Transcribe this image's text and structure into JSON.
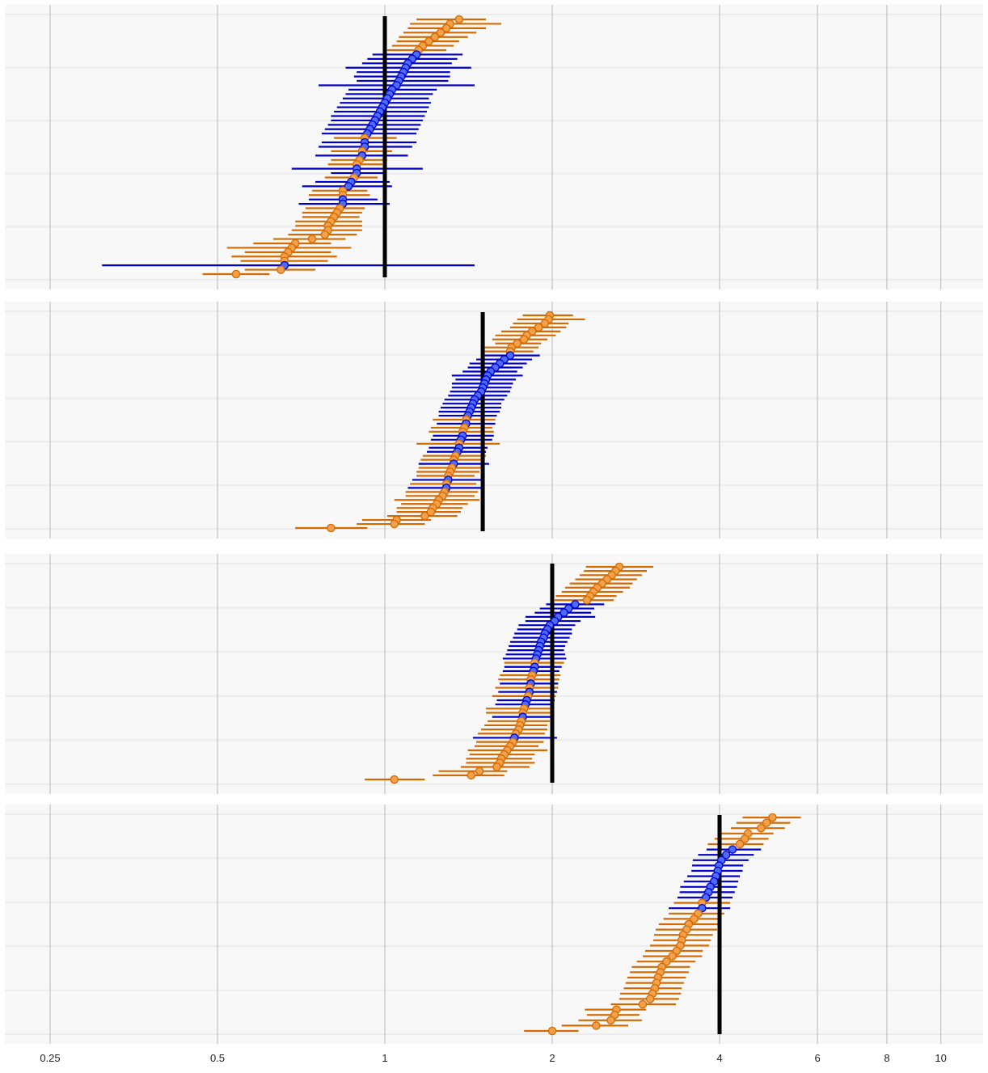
{
  "colors": {
    "panel_bg": "#f8f8f8",
    "grid_major": "#bdbdbd",
    "grid_minor": "#ececec",
    "reference_line": "#000000",
    "orange_series": "#d46a00",
    "orange_fill": "#f2a04a",
    "blue_series": "#0000c8",
    "blue_fill": "#4d6cff"
  },
  "chart_data": {
    "type": "scatter",
    "subtype": "forest plot (point estimates with horizontal interval bars), 4 stacked panels",
    "x_scale": "log",
    "x_range": [
      0.22,
      12.5
    ],
    "x_ticks": [
      0.25,
      0.5,
      1,
      2,
      4,
      6,
      8,
      10
    ],
    "x_tick_labels": [
      "0.25",
      "0.5",
      "1",
      "2",
      "4",
      "6",
      "8",
      "10"
    ],
    "title": "",
    "xlabel": "",
    "ylabel": "",
    "legend": "none",
    "grid": true,
    "panels": [
      {
        "reference_value": 1,
        "orange_intervals": [
          [
            1.36,
            1.14,
            1.52
          ],
          [
            1.31,
            1.11,
            1.62
          ],
          [
            1.29,
            1.1,
            1.52
          ],
          [
            1.26,
            1.08,
            1.46
          ],
          [
            1.23,
            1.06,
            1.41
          ],
          [
            1.2,
            1.05,
            1.36
          ],
          [
            1.17,
            1.03,
            1.33
          ],
          [
            1.15,
            1.01,
            1.29
          ],
          [
            0.92,
            0.81,
            1.05
          ],
          [
            0.91,
            0.8,
            1.03
          ],
          [
            0.9,
            0.8,
            1.01
          ],
          [
            0.89,
            0.79,
            0.99
          ],
          [
            0.88,
            0.78,
            0.97
          ],
          [
            0.84,
            0.74,
            0.93
          ],
          [
            0.84,
            0.73,
            0.94
          ],
          [
            0.83,
            0.72,
            0.92
          ],
          [
            0.82,
            0.71,
            0.91
          ],
          [
            0.81,
            0.71,
            0.9
          ],
          [
            0.8,
            0.69,
            0.91
          ],
          [
            0.79,
            0.69,
            0.91
          ],
          [
            0.79,
            0.68,
            0.91
          ],
          [
            0.78,
            0.67,
            0.89
          ],
          [
            0.74,
            0.63,
            0.85
          ],
          [
            0.69,
            0.58,
            0.8
          ],
          [
            0.68,
            0.52,
            0.87
          ],
          [
            0.67,
            0.56,
            0.8
          ],
          [
            0.66,
            0.53,
            0.82
          ],
          [
            0.66,
            0.55,
            0.79
          ],
          [
            0.65,
            0.56,
            0.75
          ],
          [
            0.54,
            0.47,
            0.62
          ]
        ],
        "blue_intervals": [
          [
            1.14,
            0.95,
            1.38
          ],
          [
            1.12,
            0.93,
            1.35
          ],
          [
            1.1,
            0.91,
            1.32
          ],
          [
            1.09,
            0.85,
            1.43
          ],
          [
            1.08,
            0.89,
            1.31
          ],
          [
            1.07,
            0.88,
            1.31
          ],
          [
            1.06,
            0.89,
            1.3
          ],
          [
            1.05,
            0.76,
            1.45
          ],
          [
            1.03,
            0.86,
            1.24
          ],
          [
            1.02,
            0.85,
            1.22
          ],
          [
            1.01,
            0.84,
            1.2
          ],
          [
            1.0,
            0.83,
            1.21
          ],
          [
            0.99,
            0.82,
            1.2
          ],
          [
            0.98,
            0.81,
            1.19
          ],
          [
            0.97,
            0.8,
            1.18
          ],
          [
            0.96,
            0.8,
            1.17
          ],
          [
            0.95,
            0.79,
            1.16
          ],
          [
            0.94,
            0.78,
            1.15
          ],
          [
            0.93,
            0.77,
            1.14
          ],
          [
            0.92,
            0.77,
            1.14
          ],
          [
            0.92,
            0.76,
            1.12
          ],
          [
            0.91,
            0.75,
            1.1
          ],
          [
            0.89,
            0.68,
            1.17
          ],
          [
            0.89,
            0.8,
            1.0
          ],
          [
            0.87,
            0.75,
            1.02
          ],
          [
            0.86,
            0.71,
            1.03
          ],
          [
            0.84,
            0.73,
            0.97
          ],
          [
            0.84,
            0.7,
            1.02
          ],
          [
            0.66,
            0.31,
            1.45
          ]
        ]
      },
      {
        "reference_value": 1.5,
        "orange_intervals": [
          [
            1.98,
            1.77,
            2.18
          ],
          [
            1.97,
            1.73,
            2.29
          ],
          [
            1.94,
            1.7,
            2.14
          ],
          [
            1.89,
            1.68,
            2.12
          ],
          [
            1.84,
            1.62,
            2.07
          ],
          [
            1.8,
            1.58,
            2.03
          ],
          [
            1.78,
            1.56,
            1.96
          ],
          [
            1.73,
            1.58,
            1.91
          ],
          [
            1.69,
            1.51,
            1.89
          ],
          [
            1.68,
            1.5,
            1.85
          ],
          [
            1.4,
            1.22,
            1.58
          ],
          [
            1.39,
            1.21,
            1.56
          ],
          [
            1.38,
            1.2,
            1.57
          ],
          [
            1.36,
            1.14,
            1.61
          ],
          [
            1.34,
            1.17,
            1.52
          ],
          [
            1.33,
            1.16,
            1.51
          ],
          [
            1.32,
            1.15,
            1.49
          ],
          [
            1.31,
            1.14,
            1.48
          ],
          [
            1.3,
            1.14,
            1.45
          ],
          [
            1.29,
            1.11,
            1.46
          ],
          [
            1.28,
            1.09,
            1.47
          ],
          [
            1.27,
            1.09,
            1.45
          ],
          [
            1.25,
            1.04,
            1.48
          ],
          [
            1.24,
            1.07,
            1.41
          ],
          [
            1.22,
            1.05,
            1.38
          ],
          [
            1.21,
            1.05,
            1.37
          ],
          [
            1.18,
            1.01,
            1.35
          ],
          [
            1.05,
            0.91,
            1.21
          ],
          [
            1.04,
            0.89,
            1.18
          ],
          [
            0.8,
            0.69,
            0.93
          ]
        ],
        "blue_intervals": [
          [
            1.68,
            1.49,
            1.9
          ],
          [
            1.64,
            1.46,
            1.84
          ],
          [
            1.61,
            1.42,
            1.8
          ],
          [
            1.58,
            1.41,
            1.77
          ],
          [
            1.55,
            1.38,
            1.73
          ],
          [
            1.53,
            1.32,
            1.77
          ],
          [
            1.52,
            1.34,
            1.72
          ],
          [
            1.51,
            1.32,
            1.7
          ],
          [
            1.5,
            1.32,
            1.69
          ],
          [
            1.49,
            1.31,
            1.68
          ],
          [
            1.47,
            1.3,
            1.66
          ],
          [
            1.45,
            1.28,
            1.64
          ],
          [
            1.44,
            1.27,
            1.62
          ],
          [
            1.43,
            1.26,
            1.62
          ],
          [
            1.42,
            1.25,
            1.61
          ],
          [
            1.41,
            1.25,
            1.59
          ],
          [
            1.4,
            1.24,
            1.58
          ],
          [
            1.38,
            1.22,
            1.57
          ],
          [
            1.37,
            1.21,
            1.56
          ],
          [
            1.36,
            1.2,
            1.53
          ],
          [
            1.35,
            1.19,
            1.52
          ],
          [
            1.33,
            1.15,
            1.54
          ],
          [
            1.3,
            1.12,
            1.5
          ],
          [
            1.29,
            1.1,
            1.51
          ]
        ]
      },
      {
        "reference_value": 2,
        "orange_intervals": [
          [
            2.64,
            2.3,
            3.04
          ],
          [
            2.6,
            2.28,
            2.96
          ],
          [
            2.56,
            2.24,
            2.9
          ],
          [
            2.51,
            2.2,
            2.84
          ],
          [
            2.46,
            2.15,
            2.79
          ],
          [
            2.41,
            2.11,
            2.76
          ],
          [
            2.37,
            2.08,
            2.68
          ],
          [
            2.34,
            2.03,
            2.61
          ],
          [
            2.31,
            2.02,
            2.58
          ],
          [
            1.86,
            1.64,
            2.1
          ],
          [
            1.84,
            1.61,
            2.07
          ],
          [
            1.83,
            1.6,
            2.06
          ],
          [
            1.82,
            1.58,
            2.05
          ],
          [
            1.81,
            1.56,
            2.03
          ],
          [
            1.78,
            1.52,
            2.0
          ],
          [
            1.77,
            1.52,
            1.99
          ],
          [
            1.76,
            1.53,
            1.98
          ],
          [
            1.75,
            1.51,
            1.96
          ],
          [
            1.74,
            1.49,
            1.96
          ],
          [
            1.72,
            1.47,
            1.94
          ],
          [
            1.7,
            1.46,
            1.93
          ],
          [
            1.68,
            1.45,
            1.89
          ],
          [
            1.66,
            1.41,
            1.96
          ],
          [
            1.64,
            1.42,
            1.86
          ],
          [
            1.62,
            1.4,
            1.84
          ],
          [
            1.61,
            1.4,
            1.86
          ],
          [
            1.59,
            1.37,
            1.82
          ],
          [
            1.48,
            1.25,
            1.66
          ],
          [
            1.43,
            1.22,
            1.64
          ],
          [
            1.04,
            0.92,
            1.18
          ]
        ],
        "blue_intervals": [
          [
            2.2,
            1.95,
            2.48
          ],
          [
            2.14,
            1.9,
            2.38
          ],
          [
            2.1,
            1.86,
            2.35
          ],
          [
            2.05,
            1.79,
            2.39
          ],
          [
            2.02,
            1.79,
            2.25
          ],
          [
            1.98,
            1.74,
            2.2
          ],
          [
            1.96,
            1.73,
            2.17
          ],
          [
            1.94,
            1.71,
            2.17
          ],
          [
            1.93,
            1.7,
            2.15
          ],
          [
            1.91,
            1.68,
            2.13
          ],
          [
            1.9,
            1.67,
            2.11
          ],
          [
            1.89,
            1.66,
            2.1
          ],
          [
            1.88,
            1.65,
            2.11
          ],
          [
            1.87,
            1.63,
            2.12
          ],
          [
            1.86,
            1.64,
            2.08
          ],
          [
            1.85,
            1.63,
            2.06
          ],
          [
            1.83,
            1.61,
            2.05
          ],
          [
            1.82,
            1.6,
            2.04
          ],
          [
            1.8,
            1.59,
            2.02
          ],
          [
            1.79,
            1.58,
            2.01
          ],
          [
            1.77,
            1.56,
            2.0
          ],
          [
            1.71,
            1.44,
            2.04
          ]
        ]
      },
      {
        "reference_value": 4,
        "orange_intervals": [
          [
            4.98,
            4.4,
            5.6
          ],
          [
            4.86,
            4.29,
            5.36
          ],
          [
            4.75,
            4.19,
            5.24
          ],
          [
            4.5,
            3.98,
            5.0
          ],
          [
            4.44,
            3.92,
            4.9
          ],
          [
            4.35,
            3.81,
            4.8
          ],
          [
            3.72,
            3.31,
            4.18
          ],
          [
            3.66,
            3.24,
            4.08
          ],
          [
            3.6,
            3.17,
            4.02
          ],
          [
            3.52,
            3.11,
            3.99
          ],
          [
            3.49,
            3.07,
            3.96
          ],
          [
            3.44,
            3.05,
            3.89
          ],
          [
            3.42,
            3.04,
            3.86
          ],
          [
            3.4,
            3.0,
            3.83
          ],
          [
            3.35,
            2.94,
            3.73
          ],
          [
            3.29,
            2.91,
            3.72
          ],
          [
            3.21,
            2.84,
            3.62
          ],
          [
            3.15,
            2.78,
            3.54
          ],
          [
            3.13,
            2.76,
            3.52
          ],
          [
            3.1,
            2.73,
            3.48
          ],
          [
            3.08,
            2.71,
            3.45
          ],
          [
            3.06,
            2.69,
            3.42
          ],
          [
            3.03,
            2.65,
            3.41
          ],
          [
            3.0,
            2.64,
            3.38
          ],
          [
            2.91,
            2.55,
            3.34
          ],
          [
            2.61,
            2.29,
            2.95
          ],
          [
            2.59,
            2.31,
            2.87
          ],
          [
            2.55,
            2.23,
            2.9
          ],
          [
            2.4,
            2.08,
            2.74
          ],
          [
            2.0,
            1.78,
            2.23
          ]
        ],
        "blue_intervals": [
          [
            4.22,
            3.79,
            4.75
          ],
          [
            4.11,
            3.66,
            4.61
          ],
          [
            4.03,
            3.58,
            4.51
          ],
          [
            3.99,
            3.57,
            4.41
          ],
          [
            3.97,
            3.56,
            4.4
          ],
          [
            3.94,
            3.5,
            4.35
          ],
          [
            3.91,
            3.45,
            4.32
          ],
          [
            3.85,
            3.4,
            4.3
          ],
          [
            3.82,
            3.39,
            4.26
          ],
          [
            3.78,
            3.36,
            4.22
          ],
          [
            3.72,
            3.24,
            4.18
          ]
        ]
      }
    ]
  }
}
